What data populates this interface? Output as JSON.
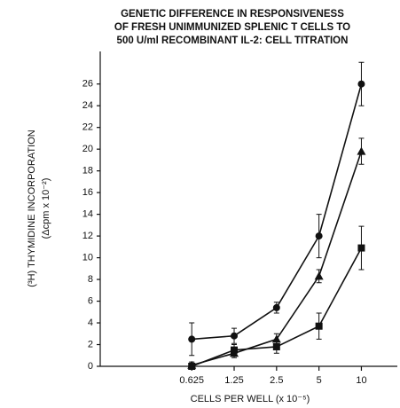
{
  "chart_data": {
    "type": "line",
    "title": [
      "GENETIC DIFFERENCE IN RESPONSIVENESS",
      "OF FRESH UNIMMUNIZED SPLENIC T CELLS TO",
      "500 U/ml RECOMBINANT IL-2:  CELL TITRATION"
    ],
    "y_label": [
      "(³H) THYMIDINE INCORPORATION",
      "(Δcpm x 10⁻²)"
    ],
    "x_label": "CELLS PER WELL (x 10⁻⁵)",
    "x": [
      0.625,
      1.25,
      2.5,
      5,
      10
    ],
    "x_scale": "log",
    "xlim": [
      0.14,
      18
    ],
    "xticks": [
      0.625,
      1.25,
      2.5,
      5,
      10
    ],
    "ylim": [
      0,
      29
    ],
    "yticks": [
      0,
      2,
      4,
      6,
      8,
      10,
      12,
      14,
      16,
      18,
      20,
      22,
      24,
      26
    ],
    "series": [
      {
        "marker": "circle",
        "color": "#111111",
        "values": [
          2.5,
          2.8,
          5.4,
          12,
          26
        ],
        "errors": [
          1.5,
          0.7,
          0.5,
          2,
          2
        ]
      },
      {
        "marker": "triangle",
        "color": "#111111",
        "values": [
          0.1,
          1.2,
          2.5,
          8.3,
          19.8
        ],
        "errors": [
          0.3,
          0.4,
          0.5,
          0.6,
          1.2
        ]
      },
      {
        "marker": "square",
        "color": "#111111",
        "values": [
          0,
          1.5,
          1.8,
          3.7,
          10.9
        ],
        "errors": [
          0.3,
          0.5,
          0.6,
          1.2,
          2
        ]
      }
    ]
  }
}
